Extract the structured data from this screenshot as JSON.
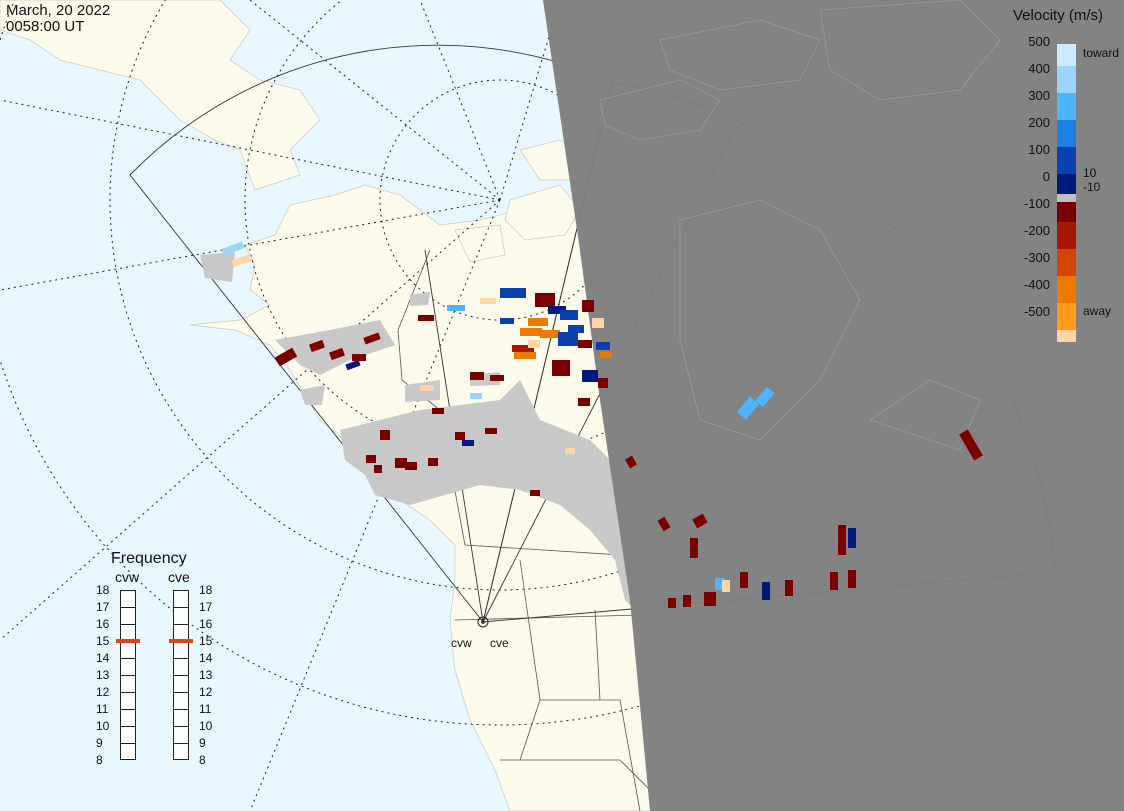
{
  "header": {
    "date": "March, 20 2022",
    "time": "0058:00 UT"
  },
  "colorbar": {
    "title": "Velocity (m/s)",
    "ticks": [
      "500",
      "400",
      "300",
      "200",
      "100",
      "0",
      "-100",
      "-200",
      "-300",
      "-400",
      "-500"
    ],
    "label_toward": "toward",
    "label_away": "away",
    "label_pos": "10",
    "label_neg": "-10",
    "colors": [
      "#cfeaff",
      "#9ad4ff",
      "#4fb4ff",
      "#1f7fe0",
      "#0a3fb0",
      "#001a7a",
      "#bfbfbf",
      "#7a0000",
      "#a81800",
      "#d24600",
      "#ec7a00",
      "#ff9a1a",
      "#ffd3a8"
    ]
  },
  "frequency": {
    "title": "Frequency",
    "radar_left": "cvw",
    "radar_right": "cve",
    "ticks": [
      "18",
      "17",
      "16",
      "15",
      "14",
      "13",
      "12",
      "11",
      "10",
      "9",
      "8"
    ],
    "cvw_mhz": 15,
    "cve_mhz": 15,
    "marker_color": "#d9451e"
  },
  "radars": {
    "site_left": "cvw",
    "site_right": "cve"
  },
  "map": {
    "ocean_color": "#e8f6fd",
    "land_color": "#fbfaeb",
    "night_color": "#7f7f7f",
    "ground_scatter_color": "#c8c8c8"
  }
}
